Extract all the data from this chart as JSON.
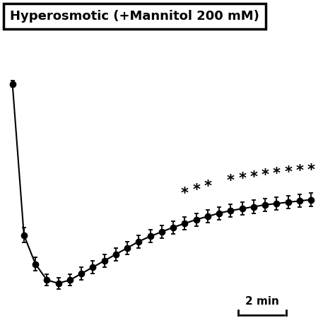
{
  "title": "Hyperosmotic (+Mannitol 200 mM)",
  "scale_bar_label": "2 min",
  "background_color": "#ffffff",
  "line_color": "#000000",
  "marker_color": "#000000",
  "star_color": "#000000",
  "x_values": [
    0,
    1,
    2,
    3,
    4,
    5,
    6,
    7,
    8,
    9,
    10,
    11,
    12,
    13,
    14,
    15,
    16,
    17,
    18,
    19,
    20,
    21,
    22,
    23,
    24,
    25,
    26
  ],
  "y_values": [
    1.08,
    0.845,
    0.8,
    0.775,
    0.77,
    0.775,
    0.785,
    0.795,
    0.805,
    0.815,
    0.825,
    0.835,
    0.843,
    0.85,
    0.857,
    0.863,
    0.869,
    0.874,
    0.879,
    0.883,
    0.886,
    0.889,
    0.892,
    0.894,
    0.896,
    0.898,
    0.9
  ],
  "y_err": [
    0.005,
    0.012,
    0.01,
    0.009,
    0.009,
    0.009,
    0.01,
    0.01,
    0.01,
    0.01,
    0.01,
    0.01,
    0.01,
    0.01,
    0.01,
    0.01,
    0.01,
    0.01,
    0.01,
    0.01,
    0.01,
    0.01,
    0.01,
    0.01,
    0.01,
    0.01,
    0.01
  ],
  "star_x_positions": [
    15,
    16,
    17,
    19,
    20,
    21,
    22,
    23,
    24,
    25,
    26
  ],
  "marker_size": 6,
  "line_width": 1.5,
  "figsize": [
    4.74,
    4.74
  ],
  "dpi": 100,
  "ylim": [
    0.7,
    1.2
  ],
  "xlim": [
    -0.5,
    27.5
  ],
  "title_fontsize": 13,
  "star_fontsize": 15,
  "scale_fontsize": 11
}
